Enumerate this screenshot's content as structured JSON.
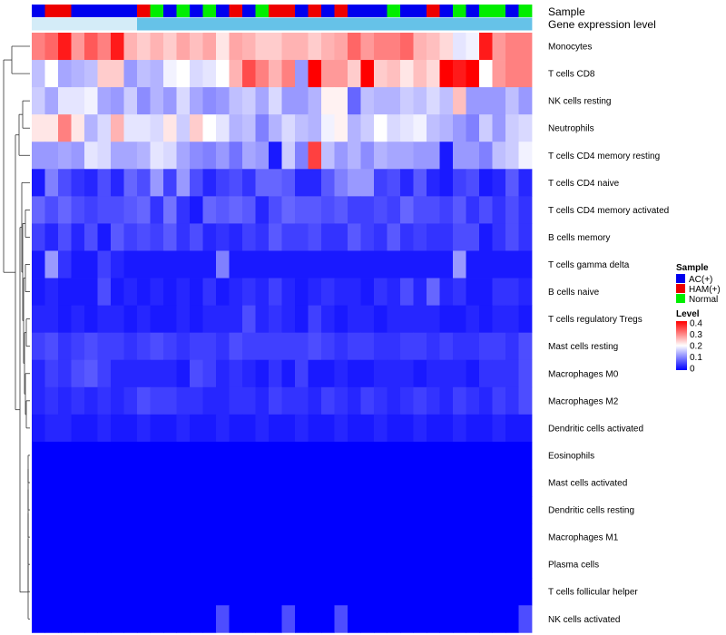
{
  "chart_data": {
    "type": "heatmap",
    "annotation_labels": [
      "Sample",
      "Gene expression level"
    ],
    "sample_groups": [
      "AC(+)",
      "HAM(+)",
      "HAM(+)",
      "AC(+)",
      "AC(+)",
      "AC(+)",
      "AC(+)",
      "AC(+)",
      "HAM(+)",
      "Normal",
      "AC(+)",
      "Normal",
      "AC(+)",
      "Normal",
      "AC(+)",
      "HAM(+)",
      "AC(+)",
      "Normal",
      "HAM(+)",
      "HAM(+)",
      "AC(+)",
      "HAM(+)",
      "AC(+)",
      "HAM(+)",
      "AC(+)",
      "AC(+)",
      "AC(+)",
      "Normal",
      "AC(+)",
      "AC(+)",
      "HAM(+)",
      "AC(+)",
      "Normal",
      "AC(+)",
      "Normal",
      "Normal",
      "AC(+)",
      "Normal"
    ],
    "expression_groups": [
      "high",
      "high",
      "high",
      "high",
      "high",
      "high",
      "high",
      "high",
      "low",
      "low",
      "low",
      "low",
      "low",
      "low",
      "low",
      "low",
      "low",
      "low",
      "low",
      "low",
      "low",
      "low",
      "low",
      "low",
      "low",
      "low",
      "low",
      "low",
      "low",
      "low",
      "low",
      "low",
      "low",
      "low",
      "low",
      "low",
      "low",
      "low"
    ],
    "rows": [
      "Monocytes",
      "T cells CD8",
      "NK cells resting",
      "Neutrophils",
      "T cells CD4 memory resting",
      "T cells CD4 naive",
      "T cells CD4 memory activated",
      "B cells memory",
      "T cells gamma delta",
      "B cells naive",
      "T cells regulatory  Tregs",
      "Mast cells resting",
      "Macrophages M0",
      "Macrophages M2",
      "Dendritic cells activated",
      "Eosinophils",
      "Mast cells activated",
      "Dendritic cells resting",
      "Macrophages M1",
      "Plasma cells",
      "T cells follicular helper",
      "NK cells activated"
    ],
    "values": [
      [
        0.3,
        0.32,
        0.38,
        0.28,
        0.33,
        0.3,
        0.38,
        0.26,
        0.24,
        0.26,
        0.24,
        0.27,
        0.25,
        0.27,
        0.22,
        0.27,
        0.26,
        0.24,
        0.24,
        0.26,
        0.26,
        0.24,
        0.26,
        0.27,
        0.32,
        0.28,
        0.3,
        0.3,
        0.32,
        0.26,
        0.25,
        0.23,
        0.18,
        0.19,
        0.38,
        0.28,
        0.3,
        0.3
      ],
      [
        0.15,
        0.2,
        0.13,
        0.14,
        0.15,
        0.24,
        0.24,
        0.12,
        0.15,
        0.14,
        0.19,
        0.2,
        0.17,
        0.18,
        0.2,
        0.26,
        0.34,
        0.3,
        0.26,
        0.3,
        0.12,
        0.4,
        0.28,
        0.28,
        0.24,
        0.4,
        0.24,
        0.25,
        0.22,
        0.25,
        0.23,
        0.4,
        0.38,
        0.4,
        0.2,
        0.28,
        0.3,
        0.3
      ],
      [
        0.16,
        0.13,
        0.18,
        0.18,
        0.19,
        0.13,
        0.12,
        0.16,
        0.11,
        0.14,
        0.12,
        0.17,
        0.13,
        0.11,
        0.12,
        0.15,
        0.16,
        0.13,
        0.17,
        0.12,
        0.12,
        0.14,
        0.21,
        0.21,
        0.08,
        0.15,
        0.14,
        0.14,
        0.16,
        0.15,
        0.17,
        0.15,
        0.25,
        0.12,
        0.12,
        0.12,
        0.15,
        0.12
      ],
      [
        0.22,
        0.22,
        0.3,
        0.22,
        0.14,
        0.17,
        0.26,
        0.18,
        0.18,
        0.17,
        0.22,
        0.16,
        0.24,
        0.2,
        0.18,
        0.14,
        0.15,
        0.1,
        0.14,
        0.17,
        0.15,
        0.14,
        0.19,
        0.21,
        0.14,
        0.16,
        0.2,
        0.17,
        0.18,
        0.19,
        0.15,
        0.14,
        0.12,
        0.1,
        0.16,
        0.12,
        0.16,
        0.17
      ],
      [
        0.12,
        0.12,
        0.13,
        0.12,
        0.18,
        0.17,
        0.13,
        0.13,
        0.14,
        0.18,
        0.17,
        0.13,
        0.11,
        0.1,
        0.12,
        0.09,
        0.13,
        0.12,
        0.02,
        0.16,
        0.1,
        0.35,
        0.15,
        0.12,
        0.14,
        0.11,
        0.14,
        0.13,
        0.13,
        0.12,
        0.12,
        0.02,
        0.12,
        0.12,
        0.1,
        0.15,
        0.16,
        0.19
      ],
      [
        0.02,
        0.1,
        0.06,
        0.04,
        0.03,
        0.06,
        0.03,
        0.08,
        0.06,
        0.12,
        0.05,
        0.12,
        0.06,
        0.03,
        0.05,
        0.06,
        0.04,
        0.08,
        0.08,
        0.07,
        0.03,
        0.03,
        0.07,
        0.1,
        0.12,
        0.12,
        0.05,
        0.06,
        0.03,
        0.07,
        0.03,
        0.02,
        0.05,
        0.06,
        0.02,
        0.03,
        0.07,
        0.03
      ],
      [
        0.08,
        0.06,
        0.08,
        0.06,
        0.05,
        0.06,
        0.06,
        0.07,
        0.08,
        0.04,
        0.09,
        0.04,
        0.02,
        0.08,
        0.07,
        0.08,
        0.07,
        0.03,
        0.06,
        0.08,
        0.07,
        0.07,
        0.06,
        0.07,
        0.05,
        0.05,
        0.06,
        0.05,
        0.08,
        0.06,
        0.06,
        0.05,
        0.07,
        0.04,
        0.06,
        0.04,
        0.06,
        0.04
      ],
      [
        0.05,
        0.03,
        0.06,
        0.03,
        0.06,
        0.02,
        0.07,
        0.05,
        0.06,
        0.05,
        0.07,
        0.04,
        0.06,
        0.03,
        0.04,
        0.03,
        0.05,
        0.04,
        0.07,
        0.05,
        0.05,
        0.06,
        0.04,
        0.04,
        0.07,
        0.05,
        0.04,
        0.07,
        0.04,
        0.05,
        0.04,
        0.04,
        0.06,
        0.06,
        0.02,
        0.04,
        0.06,
        0.04
      ],
      [
        0.02,
        0.12,
        0.04,
        0.02,
        0.02,
        0.05,
        0.03,
        0.02,
        0.02,
        0.02,
        0.02,
        0.02,
        0.02,
        0.02,
        0.1,
        0.02,
        0.02,
        0.02,
        0.02,
        0.02,
        0.02,
        0.02,
        0.02,
        0.02,
        0.02,
        0.02,
        0.02,
        0.02,
        0.02,
        0.02,
        0.02,
        0.02,
        0.12,
        0.02,
        0.02,
        0.02,
        0.02,
        0.02
      ],
      [
        0.02,
        0.03,
        0.02,
        0.02,
        0.02,
        0.06,
        0.02,
        0.03,
        0.02,
        0.03,
        0.02,
        0.03,
        0.02,
        0.04,
        0.02,
        0.03,
        0.04,
        0.03,
        0.05,
        0.03,
        0.02,
        0.03,
        0.04,
        0.03,
        0.03,
        0.02,
        0.04,
        0.03,
        0.06,
        0.03,
        0.08,
        0.03,
        0.04,
        0.02,
        0.02,
        0.04,
        0.04,
        0.03
      ],
      [
        0.03,
        0.03,
        0.02,
        0.03,
        0.02,
        0.03,
        0.03,
        0.02,
        0.03,
        0.02,
        0.02,
        0.03,
        0.02,
        0.03,
        0.03,
        0.03,
        0.06,
        0.03,
        0.04,
        0.03,
        0.02,
        0.05,
        0.03,
        0.02,
        0.03,
        0.03,
        0.02,
        0.03,
        0.03,
        0.03,
        0.03,
        0.02,
        0.02,
        0.03,
        0.02,
        0.03,
        0.03,
        0.02
      ],
      [
        0.05,
        0.06,
        0.04,
        0.05,
        0.06,
        0.05,
        0.05,
        0.04,
        0.05,
        0.06,
        0.05,
        0.04,
        0.05,
        0.05,
        0.04,
        0.06,
        0.05,
        0.05,
        0.05,
        0.05,
        0.05,
        0.06,
        0.05,
        0.04,
        0.05,
        0.05,
        0.04,
        0.04,
        0.05,
        0.05,
        0.04,
        0.05,
        0.04,
        0.04,
        0.05,
        0.05,
        0.04,
        0.06
      ],
      [
        0.03,
        0.05,
        0.04,
        0.06,
        0.07,
        0.05,
        0.03,
        0.03,
        0.03,
        0.03,
        0.03,
        0.02,
        0.06,
        0.05,
        0.03,
        0.04,
        0.03,
        0.02,
        0.04,
        0.02,
        0.05,
        0.02,
        0.02,
        0.03,
        0.02,
        0.02,
        0.03,
        0.03,
        0.03,
        0.02,
        0.03,
        0.03,
        0.03,
        0.02,
        0.04,
        0.04,
        0.04,
        0.06
      ],
      [
        0.03,
        0.04,
        0.03,
        0.04,
        0.03,
        0.04,
        0.03,
        0.04,
        0.06,
        0.05,
        0.05,
        0.04,
        0.04,
        0.03,
        0.03,
        0.04,
        0.04,
        0.03,
        0.05,
        0.04,
        0.04,
        0.03,
        0.05,
        0.04,
        0.03,
        0.05,
        0.04,
        0.03,
        0.04,
        0.05,
        0.04,
        0.03,
        0.05,
        0.04,
        0.03,
        0.05,
        0.04,
        0.06
      ],
      [
        0.02,
        0.03,
        0.03,
        0.02,
        0.02,
        0.03,
        0.02,
        0.02,
        0.03,
        0.02,
        0.02,
        0.03,
        0.02,
        0.02,
        0.03,
        0.02,
        0.02,
        0.03,
        0.02,
        0.02,
        0.03,
        0.02,
        0.02,
        0.03,
        0.02,
        0.02,
        0.03,
        0.02,
        0.02,
        0.03,
        0.02,
        0.02,
        0.03,
        0.02,
        0.02,
        0.03,
        0.02,
        0.02
      ],
      [
        0,
        0,
        0,
        0,
        0,
        0,
        0,
        0,
        0,
        0,
        0,
        0,
        0,
        0,
        0,
        0,
        0,
        0,
        0,
        0,
        0,
        0,
        0,
        0,
        0,
        0,
        0,
        0,
        0,
        0,
        0,
        0,
        0,
        0,
        0,
        0,
        0,
        0
      ],
      [
        0,
        0,
        0,
        0,
        0,
        0,
        0,
        0,
        0,
        0,
        0,
        0,
        0,
        0,
        0,
        0,
        0,
        0,
        0,
        0,
        0,
        0,
        0,
        0,
        0,
        0,
        0,
        0,
        0,
        0,
        0,
        0,
        0,
        0,
        0,
        0,
        0,
        0
      ],
      [
        0,
        0,
        0,
        0,
        0,
        0,
        0,
        0,
        0,
        0,
        0,
        0,
        0,
        0,
        0,
        0,
        0,
        0,
        0,
        0,
        0,
        0,
        0,
        0,
        0,
        0,
        0,
        0,
        0,
        0,
        0,
        0,
        0,
        0,
        0,
        0,
        0,
        0
      ],
      [
        0,
        0,
        0,
        0,
        0,
        0,
        0,
        0,
        0,
        0,
        0,
        0,
        0,
        0,
        0,
        0,
        0,
        0,
        0,
        0,
        0,
        0,
        0,
        0,
        0,
        0,
        0,
        0,
        0,
        0,
        0,
        0,
        0,
        0,
        0,
        0,
        0,
        0
      ],
      [
        0,
        0,
        0,
        0,
        0,
        0,
        0,
        0,
        0,
        0,
        0,
        0,
        0,
        0,
        0,
        0,
        0,
        0,
        0,
        0,
        0,
        0,
        0,
        0,
        0,
        0,
        0,
        0,
        0,
        0,
        0,
        0,
        0,
        0,
        0,
        0,
        0,
        0
      ],
      [
        0,
        0,
        0,
        0,
        0,
        0,
        0,
        0,
        0,
        0,
        0,
        0,
        0,
        0,
        0,
        0,
        0,
        0,
        0,
        0,
        0,
        0,
        0,
        0,
        0,
        0,
        0,
        0,
        0,
        0,
        0,
        0,
        0,
        0,
        0,
        0,
        0,
        0
      ],
      [
        0,
        0,
        0,
        0,
        0,
        0,
        0,
        0,
        0,
        0,
        0,
        0,
        0,
        0,
        0.06,
        0,
        0,
        0,
        0,
        0.06,
        0,
        0,
        0,
        0.06,
        0,
        0,
        0,
        0,
        0,
        0,
        0,
        0,
        0,
        0,
        0,
        0,
        0,
        0.06
      ]
    ],
    "value_range": [
      0,
      0.4
    ],
    "legend": {
      "sample_title": "Sample",
      "sample_entries": [
        {
          "label": "AC(+)",
          "color": "#0000ee"
        },
        {
          "label": "HAM(+)",
          "color": "#ee0000"
        },
        {
          "label": "Normal",
          "color": "#00ee00"
        }
      ],
      "level_title": "Level",
      "level_ticks": [
        "0.4",
        "0.3",
        "0.2",
        "0.1",
        "0"
      ],
      "placement": "right"
    },
    "colors": {
      "low": "#0000ff",
      "mid": "#ffffff",
      "high": "#ff0000",
      "expression_high": "#d4ecf8",
      "expression_low": "#66c2e8"
    }
  }
}
